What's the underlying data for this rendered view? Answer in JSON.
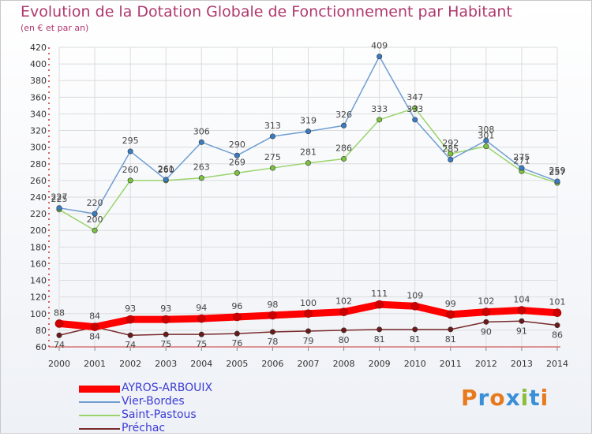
{
  "header": {
    "title": "Evolution de la Dotation Globale de Fonctionnement par Habitant",
    "subtitle": "(en € et par an)"
  },
  "logo": {
    "text": "Proxiti",
    "colors": [
      "#e87a1e",
      "#3a8fd6",
      "#e87a1e",
      "#3a8fd6",
      "#8bbf3a",
      "#3a8fd6",
      "#e87a1e"
    ]
  },
  "chart_data": {
    "type": "line",
    "title": "Evolution de la Dotation Globale de Fonctionnement par Habitant",
    "subtitle": "(en € et par an)",
    "xlabel": "",
    "ylabel": "",
    "ylim": [
      60,
      420
    ],
    "yticks": [
      60,
      80,
      100,
      120,
      140,
      160,
      180,
      200,
      220,
      240,
      260,
      280,
      300,
      320,
      340,
      360,
      380,
      400,
      420
    ],
    "grid": true,
    "legend": "bottom-left",
    "x": [
      "2000",
      "2001",
      "2002",
      "2003",
      "2004",
      "2005",
      "2006",
      "2007",
      "2008",
      "2009",
      "2010",
      "2011",
      "2012",
      "2013",
      "2014"
    ],
    "series": [
      {
        "name": "AYROS-ARBOUIX",
        "color": "#ff0000",
        "marker": "#cc0000",
        "values": [
          88,
          84,
          93,
          93,
          94,
          96,
          98,
          100,
          102,
          111,
          109,
          99,
          102,
          104,
          101
        ]
      },
      {
        "name": "Vier-Bordes",
        "color": "#6f9ed2",
        "marker": "#3a7cc2",
        "values": [
          227,
          220,
          295,
          261,
          306,
          290,
          313,
          319,
          326,
          409,
          333,
          285,
          308,
          275,
          259
        ]
      },
      {
        "name": "Saint-Pastous",
        "color": "#9ad46c",
        "marker": "#7cc23e",
        "values": [
          225,
          200,
          260,
          260,
          263,
          269,
          275,
          281,
          286,
          333,
          347,
          292,
          301,
          271,
          257
        ]
      },
      {
        "name": "Préchac",
        "color": "#7a2a2a",
        "marker": "#6a1a1a",
        "values": [
          74,
          84,
          74,
          75,
          75,
          76,
          78,
          79,
          80,
          81,
          81,
          81,
          90,
          91,
          86
        ]
      }
    ]
  }
}
